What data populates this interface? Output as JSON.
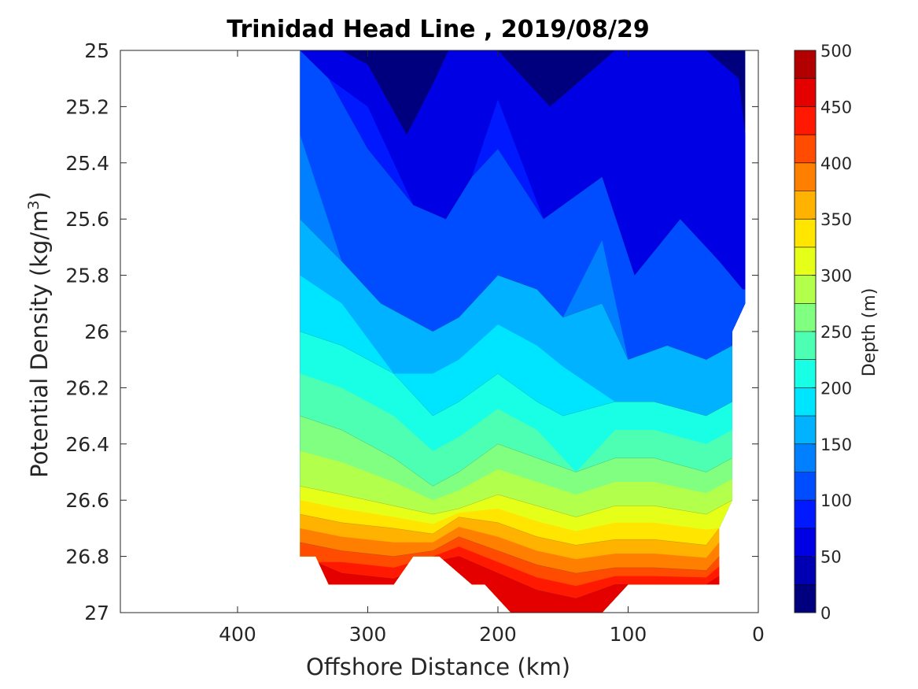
{
  "chart_data": {
    "type": "heatmap",
    "subtype": "filled-contour",
    "title": "Trinidad Head Line , 2019/08/29",
    "xlabel": "Offshore Distance (km)",
    "ylabel_main": "Potential Density (kg/m",
    "ylabel_sup": "3",
    "ylabel_close": ")",
    "x_reversed": true,
    "xlim": [
      0,
      490
    ],
    "ylim": [
      25,
      27
    ],
    "y_reversed": true,
    "x_ticks": [
      400,
      300,
      200,
      100,
      0
    ],
    "x_tick_labels": [
      "400",
      "300",
      "200",
      "100",
      "0"
    ],
    "y_ticks": [
      25,
      25.2,
      25.4,
      25.6,
      25.8,
      26,
      26.2,
      26.4,
      26.6,
      26.8,
      27
    ],
    "y_tick_labels": [
      "25",
      "25.2",
      "25.4",
      "25.6",
      "25.8",
      "26",
      "26.2",
      "26.4",
      "26.6",
      "26.8",
      "27"
    ],
    "colorbar": {
      "label": "Depth (m)",
      "range": [
        0,
        500
      ],
      "ticks": [
        0,
        50,
        100,
        150,
        200,
        250,
        300,
        350,
        400,
        450,
        500
      ],
      "tick_labels": [
        "0",
        "50",
        "100",
        "150",
        "200",
        "250",
        "300",
        "350",
        "400",
        "450",
        "500"
      ],
      "colors": [
        "#00007f",
        "#0000b2",
        "#0000e5",
        "#0019ff",
        "#004cff",
        "#0080ff",
        "#00b2ff",
        "#00e5ff",
        "#19ffe5",
        "#4cffb2",
        "#80ff80",
        "#b2ff4c",
        "#e5ff19",
        "#ffe500",
        "#ffb200",
        "#ff8000",
        "#ff4c00",
        "#ff1900",
        "#e50000",
        "#b20000"
      ]
    },
    "depth_contours": [
      {
        "depth": 50,
        "points": [
          [
            352,
            25.0
          ],
          [
            320,
            25.0
          ],
          [
            300,
            25.05
          ],
          [
            270,
            25.3
          ],
          [
            248,
            25.1
          ],
          [
            238,
            25.0
          ],
          [
            200,
            25.0
          ],
          [
            160,
            25.2
          ],
          [
            110,
            25.0
          ],
          [
            40,
            25.0
          ],
          [
            15,
            25.1
          ],
          [
            10,
            25.3
          ]
        ]
      },
      {
        "depth": 100,
        "points": [
          [
            352,
            25.0
          ],
          [
            330,
            25.1
          ],
          [
            300,
            25.35
          ],
          [
            265,
            25.55
          ],
          [
            240,
            25.6
          ],
          [
            220,
            25.45
          ],
          [
            200,
            25.35
          ],
          [
            165,
            25.6
          ],
          [
            120,
            25.45
          ],
          [
            95,
            25.8
          ],
          [
            60,
            25.6
          ],
          [
            30,
            25.75
          ],
          [
            12,
            25.85
          ]
        ]
      },
      {
        "depth": 150,
        "points": [
          [
            352,
            25.6
          ],
          [
            320,
            25.75
          ],
          [
            290,
            25.9
          ],
          [
            250,
            26.0
          ],
          [
            230,
            25.95
          ],
          [
            200,
            25.8
          ],
          [
            170,
            25.85
          ],
          [
            150,
            25.95
          ],
          [
            120,
            25.9
          ],
          [
            100,
            26.1
          ],
          [
            70,
            26.05
          ],
          [
            40,
            26.1
          ],
          [
            20,
            26.05
          ]
        ]
      },
      {
        "depth": 200,
        "points": [
          [
            352,
            26.0
          ],
          [
            320,
            26.05
          ],
          [
            280,
            26.15
          ],
          [
            250,
            26.3
          ],
          [
            230,
            26.25
          ],
          [
            200,
            26.15
          ],
          [
            170,
            26.25
          ],
          [
            150,
            26.3
          ],
          [
            110,
            26.25
          ],
          [
            80,
            26.25
          ],
          [
            40,
            26.3
          ],
          [
            20,
            26.25
          ]
        ]
      },
      {
        "depth": 250,
        "points": [
          [
            352,
            26.3
          ],
          [
            320,
            26.35
          ],
          [
            280,
            26.45
          ],
          [
            250,
            26.55
          ],
          [
            230,
            26.5
          ],
          [
            200,
            26.4
          ],
          [
            170,
            26.45
          ],
          [
            140,
            26.5
          ],
          [
            110,
            26.45
          ],
          [
            80,
            26.45
          ],
          [
            40,
            26.5
          ],
          [
            20,
            26.45
          ]
        ]
      },
      {
        "depth": 300,
        "points": [
          [
            352,
            26.55
          ],
          [
            320,
            26.58
          ],
          [
            280,
            26.62
          ],
          [
            250,
            26.65
          ],
          [
            230,
            26.63
          ],
          [
            200,
            26.58
          ],
          [
            170,
            26.62
          ],
          [
            140,
            26.66
          ],
          [
            110,
            26.62
          ],
          [
            80,
            26.62
          ],
          [
            40,
            26.65
          ],
          [
            20,
            26.6
          ]
        ]
      },
      {
        "depth": 350,
        "points": [
          [
            352,
            26.65
          ],
          [
            320,
            26.68
          ],
          [
            280,
            26.7
          ],
          [
            250,
            26.72
          ],
          [
            230,
            26.66
          ],
          [
            200,
            26.68
          ],
          [
            170,
            26.73
          ],
          [
            140,
            26.76
          ],
          [
            110,
            26.74
          ],
          [
            80,
            26.74
          ],
          [
            40,
            26.76
          ],
          [
            30,
            26.7
          ]
        ]
      },
      {
        "depth": 400,
        "points": [
          [
            352,
            26.75
          ],
          [
            320,
            26.78
          ],
          [
            280,
            26.8
          ],
          [
            250,
            26.78
          ],
          [
            230,
            26.73
          ],
          [
            200,
            26.78
          ],
          [
            170,
            26.83
          ],
          [
            140,
            26.86
          ],
          [
            110,
            26.84
          ],
          [
            80,
            26.84
          ],
          [
            40,
            26.85
          ],
          [
            30,
            26.8
          ]
        ]
      },
      {
        "depth": 450,
        "points": [
          [
            340,
            26.82
          ],
          [
            320,
            26.86
          ],
          [
            280,
            26.88
          ],
          [
            250,
            26.82
          ],
          [
            230,
            26.8
          ],
          [
            200,
            26.86
          ],
          [
            170,
            26.92
          ],
          [
            140,
            26.95
          ],
          [
            110,
            26.9
          ],
          [
            80,
            26.9
          ],
          [
            40,
            26.9
          ],
          [
            30,
            26.87
          ]
        ]
      }
    ],
    "data_domain": [
      [
        352,
        25.0
      ],
      [
        10,
        25.0
      ],
      [
        10,
        25.9
      ],
      [
        20,
        26.0
      ],
      [
        20,
        26.6
      ],
      [
        30,
        26.7
      ],
      [
        30,
        26.9
      ],
      [
        100,
        26.9
      ],
      [
        120,
        27.0
      ],
      [
        190,
        27.0
      ],
      [
        210,
        26.9
      ],
      [
        220,
        26.9
      ],
      [
        245,
        26.8
      ],
      [
        265,
        26.8
      ],
      [
        280,
        26.9
      ],
      [
        330,
        26.9
      ],
      [
        340,
        26.8
      ],
      [
        352,
        26.8
      ]
    ]
  }
}
